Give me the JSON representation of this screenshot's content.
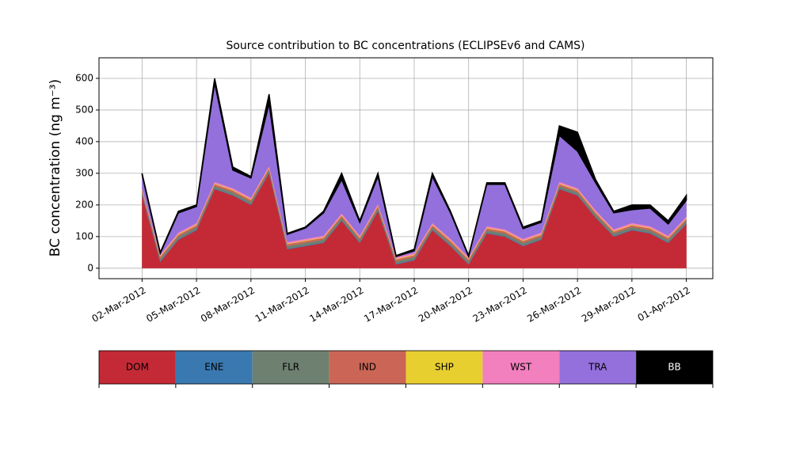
{
  "chart_data": {
    "type": "stacked_area",
    "title": "Source contribution to BC concentrations (ECLIPSEv6 and CAMS)",
    "ylabel": "BC concentration (ng m⁻³)",
    "x": [
      "2012-03-02",
      "2012-03-03",
      "2012-03-04",
      "2012-03-05",
      "2012-03-06",
      "2012-03-07",
      "2012-03-08",
      "2012-03-09",
      "2012-03-10",
      "2012-03-11",
      "2012-03-12",
      "2012-03-13",
      "2012-03-14",
      "2012-03-15",
      "2012-03-16",
      "2012-03-17",
      "2012-03-18",
      "2012-03-19",
      "2012-03-20",
      "2012-03-21",
      "2012-03-22",
      "2012-03-23",
      "2012-03-24",
      "2012-03-25",
      "2012-03-26",
      "2012-03-27",
      "2012-03-28",
      "2012-03-29",
      "2012-03-30",
      "2012-03-31",
      "2012-04-01"
    ],
    "series": [
      {
        "name": "DOM",
        "color": "#c42a36",
        "values": [
          230,
          20,
          90,
          120,
          250,
          230,
          200,
          300,
          60,
          70,
          80,
          150,
          80,
          180,
          12,
          25,
          120,
          70,
          12,
          110,
          100,
          70,
          90,
          250,
          230,
          160,
          100,
          120,
          110,
          80,
          140
        ]
      },
      {
        "name": "ENE",
        "color": "#3a78b0",
        "values": [
          2,
          2,
          2,
          2,
          2,
          2,
          2,
          2,
          2,
          2,
          2,
          2,
          2,
          2,
          2,
          2,
          2,
          2,
          2,
          2,
          2,
          2,
          2,
          2,
          2,
          2,
          2,
          2,
          2,
          2,
          2
        ]
      },
      {
        "name": "FLR",
        "color": "#6e8070",
        "values": [
          8,
          8,
          8,
          8,
          8,
          8,
          8,
          8,
          8,
          8,
          8,
          8,
          8,
          8,
          8,
          8,
          8,
          8,
          8,
          8,
          8,
          8,
          8,
          8,
          8,
          8,
          8,
          8,
          8,
          8,
          8
        ]
      },
      {
        "name": "IND",
        "color": "#cb6656",
        "values": [
          6,
          6,
          6,
          6,
          6,
          6,
          6,
          6,
          6,
          6,
          6,
          6,
          6,
          6,
          6,
          6,
          6,
          6,
          6,
          6,
          6,
          6,
          6,
          6,
          6,
          6,
          6,
          6,
          6,
          6,
          6
        ]
      },
      {
        "name": "SHP",
        "color": "#e8cf30",
        "values": [
          2,
          2,
          2,
          2,
          2,
          2,
          2,
          2,
          2,
          2,
          2,
          2,
          2,
          2,
          2,
          2,
          2,
          2,
          2,
          2,
          2,
          2,
          2,
          2,
          2,
          2,
          2,
          2,
          2,
          2,
          2
        ]
      },
      {
        "name": "WST",
        "color": "#f27fbe",
        "values": [
          5,
          5,
          5,
          5,
          5,
          5,
          5,
          5,
          5,
          5,
          5,
          5,
          5,
          5,
          5,
          5,
          5,
          5,
          5,
          5,
          5,
          5,
          5,
          5,
          5,
          5,
          5,
          5,
          5,
          5,
          5
        ]
      },
      {
        "name": "TRA",
        "color": "#9370db",
        "values": [
          42,
          4,
          62,
          52,
          312,
          57,
          62,
          197,
          24,
          34,
          72,
          107,
          42,
          87,
          2,
          7,
          147,
          82,
          2,
          132,
          142,
          32,
          32,
          147,
          117,
          87,
          52,
          42,
          57,
          37,
          52
        ]
      },
      {
        "name": "BB",
        "color": "#000000",
        "values": [
          5,
          3,
          5,
          5,
          15,
          10,
          5,
          30,
          3,
          3,
          5,
          20,
          5,
          10,
          3,
          5,
          10,
          5,
          3,
          5,
          5,
          5,
          5,
          30,
          60,
          10,
          5,
          15,
          10,
          10,
          15
        ]
      }
    ],
    "xlim": [
      "2012-02-28T15:00Z",
      "2012-04-02T11:00Z"
    ],
    "xticks": [
      {
        "value": "2012-03-02",
        "label": "02-Mar-2012"
      },
      {
        "value": "2012-03-05",
        "label": "05-Mar-2012"
      },
      {
        "value": "2012-03-08",
        "label": "08-Mar-2012"
      },
      {
        "value": "2012-03-11",
        "label": "11-Mar-2012"
      },
      {
        "value": "2012-03-14",
        "label": "14-Mar-2012"
      },
      {
        "value": "2012-03-17",
        "label": "17-Mar-2012"
      },
      {
        "value": "2012-03-20",
        "label": "20-Mar-2012"
      },
      {
        "value": "2012-03-23",
        "label": "23-Mar-2012"
      },
      {
        "value": "2012-03-26",
        "label": "26-Mar-2012"
      },
      {
        "value": "2012-03-29",
        "label": "29-Mar-2012"
      },
      {
        "value": "2012-04-01",
        "label": "01-Apr-2012"
      }
    ],
    "ylim": [
      -33,
      665
    ],
    "yticks": [
      0,
      100,
      200,
      300,
      400,
      500,
      600
    ],
    "grid": true
  }
}
